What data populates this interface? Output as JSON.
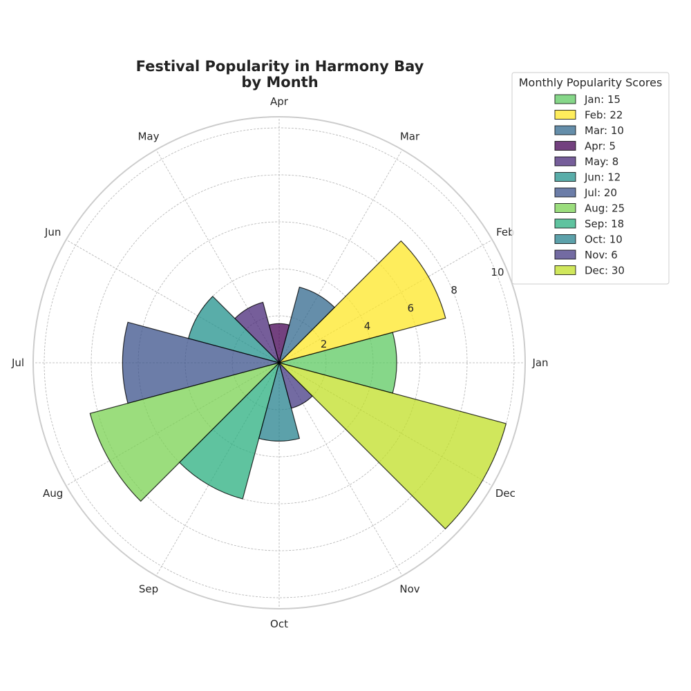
{
  "chart_data": {
    "type": "bar",
    "subtype": "polar",
    "title": "Festival Popularity in Harmony Bay",
    "subtitle": "by Month",
    "categories": [
      "Jan",
      "Feb",
      "Mar",
      "Apr",
      "May",
      "Jun",
      "Jul",
      "Aug",
      "Sep",
      "Oct",
      "Nov",
      "Dec"
    ],
    "values": [
      15,
      22,
      10,
      5,
      8,
      12,
      20,
      25,
      18,
      10,
      6,
      30
    ],
    "radial_axis_label_values": [
      2,
      4,
      6,
      8,
      10
    ],
    "radial_range": [
      0,
      10
    ],
    "grid": true,
    "legend": {
      "title": "Monthly Popularity Scores",
      "placement": "top-right",
      "entries": [
        "Jan: 15",
        "Feb: 22",
        "Mar: 10",
        "Apr: 5",
        "May: 8",
        "Jun: 12",
        "Jul: 20",
        "Aug: 25",
        "Sep: 18",
        "Oct: 10",
        "Nov: 6",
        "Dec: 30"
      ]
    },
    "colors": [
      "#5ec962",
      "#fde725",
      "#31688e",
      "#440154",
      "#482878",
      "#21918c",
      "#3b528b",
      "#7ad151",
      "#29af7f",
      "#26828e",
      "#443983",
      "#c0df25"
    ],
    "bar_alpha": 0.75,
    "edge_color": "#000000"
  }
}
